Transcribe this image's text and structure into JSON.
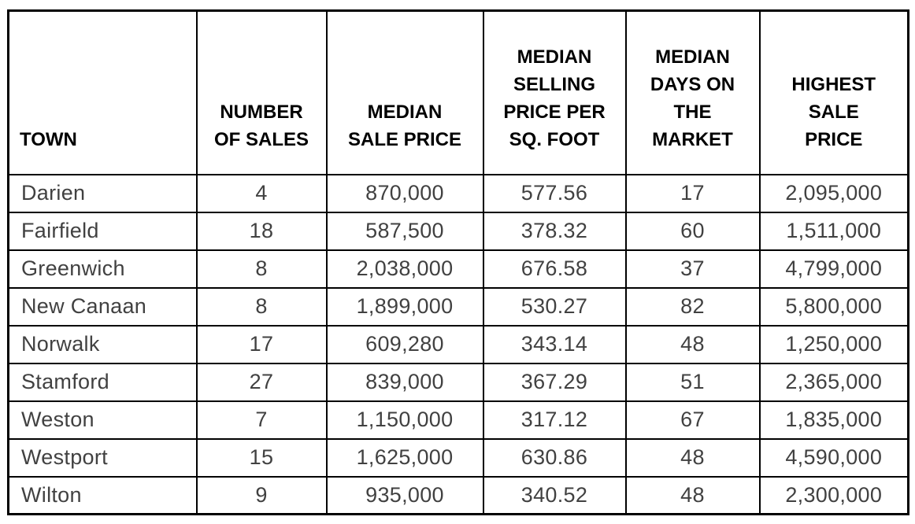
{
  "table": {
    "columns": [
      {
        "id": "town",
        "label": "TOWN"
      },
      {
        "id": "number-of-sales",
        "label": "NUMBER\nOF SALES"
      },
      {
        "id": "median-sale-price",
        "label": "MEDIAN\nSALE PRICE"
      },
      {
        "id": "median-selling-price-per-sq-foot",
        "label": "MEDIAN\nSELLING\nPRICE PER\nSQ. FOOT"
      },
      {
        "id": "median-days-on-the-market",
        "label": "MEDIAN\nDAYS ON\nTHE\nMARKET"
      },
      {
        "id": "highest-sale-price",
        "label": "HIGHEST\nSALE\nPRICE"
      }
    ],
    "rows": [
      [
        "Darien",
        "4",
        "870,000",
        "577.56",
        "17",
        "2,095,000"
      ],
      [
        "Fairfield",
        "18",
        "587,500",
        "378.32",
        "60",
        "1,511,000"
      ],
      [
        "Greenwich",
        "8",
        "2,038,000",
        "676.58",
        "37",
        "4,799,000"
      ],
      [
        "New Canaan",
        "8",
        "1,899,000",
        "530.27",
        "82",
        "5,800,000"
      ],
      [
        "Norwalk",
        "17",
        "609,280",
        "343.14",
        "48",
        "1,250,000"
      ],
      [
        "Stamford",
        "27",
        "839,000",
        "367.29",
        "51",
        "2,365,000"
      ],
      [
        "Weston",
        "7",
        "1,150,000",
        "317.12",
        "67",
        "1,835,000"
      ],
      [
        "Westport",
        "15",
        "1,625,000",
        "630.86",
        "48",
        "4,590,000"
      ],
      [
        "Wilton",
        "9",
        "935,000",
        "340.52",
        "48",
        "2,300,000"
      ]
    ]
  },
  "chart_data": {
    "type": "table",
    "columns": [
      "TOWN",
      "NUMBER OF SALES",
      "MEDIAN SALE PRICE",
      "MEDIAN SELLING PRICE PER SQ. FOOT",
      "MEDIAN DAYS ON THE MARKET",
      "HIGHEST SALE PRICE"
    ],
    "rows": [
      {
        "town": "Darien",
        "number_of_sales": 4,
        "median_sale_price": 870000,
        "median_selling_price_per_sq_foot": 577.56,
        "median_days_on_the_market": 17,
        "highest_sale_price": 2095000
      },
      {
        "town": "Fairfield",
        "number_of_sales": 18,
        "median_sale_price": 587500,
        "median_selling_price_per_sq_foot": 378.32,
        "median_days_on_the_market": 60,
        "highest_sale_price": 1511000
      },
      {
        "town": "Greenwich",
        "number_of_sales": 8,
        "median_sale_price": 2038000,
        "median_selling_price_per_sq_foot": 676.58,
        "median_days_on_the_market": 37,
        "highest_sale_price": 4799000
      },
      {
        "town": "New Canaan",
        "number_of_sales": 8,
        "median_sale_price": 1899000,
        "median_selling_price_per_sq_foot": 530.27,
        "median_days_on_the_market": 82,
        "highest_sale_price": 5800000
      },
      {
        "town": "Norwalk",
        "number_of_sales": 17,
        "median_sale_price": 609280,
        "median_selling_price_per_sq_foot": 343.14,
        "median_days_on_the_market": 48,
        "highest_sale_price": 1250000
      },
      {
        "town": "Stamford",
        "number_of_sales": 27,
        "median_sale_price": 839000,
        "median_selling_price_per_sq_foot": 367.29,
        "median_days_on_the_market": 51,
        "highest_sale_price": 2365000
      },
      {
        "town": "Weston",
        "number_of_sales": 7,
        "median_sale_price": 1150000,
        "median_selling_price_per_sq_foot": 317.12,
        "median_days_on_the_market": 67,
        "highest_sale_price": 1835000
      },
      {
        "town": "Westport",
        "number_of_sales": 15,
        "median_sale_price": 1625000,
        "median_selling_price_per_sq_foot": 630.86,
        "median_days_on_the_market": 48,
        "highest_sale_price": 4590000
      },
      {
        "town": "Wilton",
        "number_of_sales": 9,
        "median_sale_price": 935000,
        "median_selling_price_per_sq_foot": 340.52,
        "median_days_on_the_market": 48,
        "highest_sale_price": 2300000
      }
    ]
  },
  "colors": {
    "border": "#000000",
    "header_text": "#000000",
    "body_text": "#414141",
    "background": "#ffffff"
  }
}
